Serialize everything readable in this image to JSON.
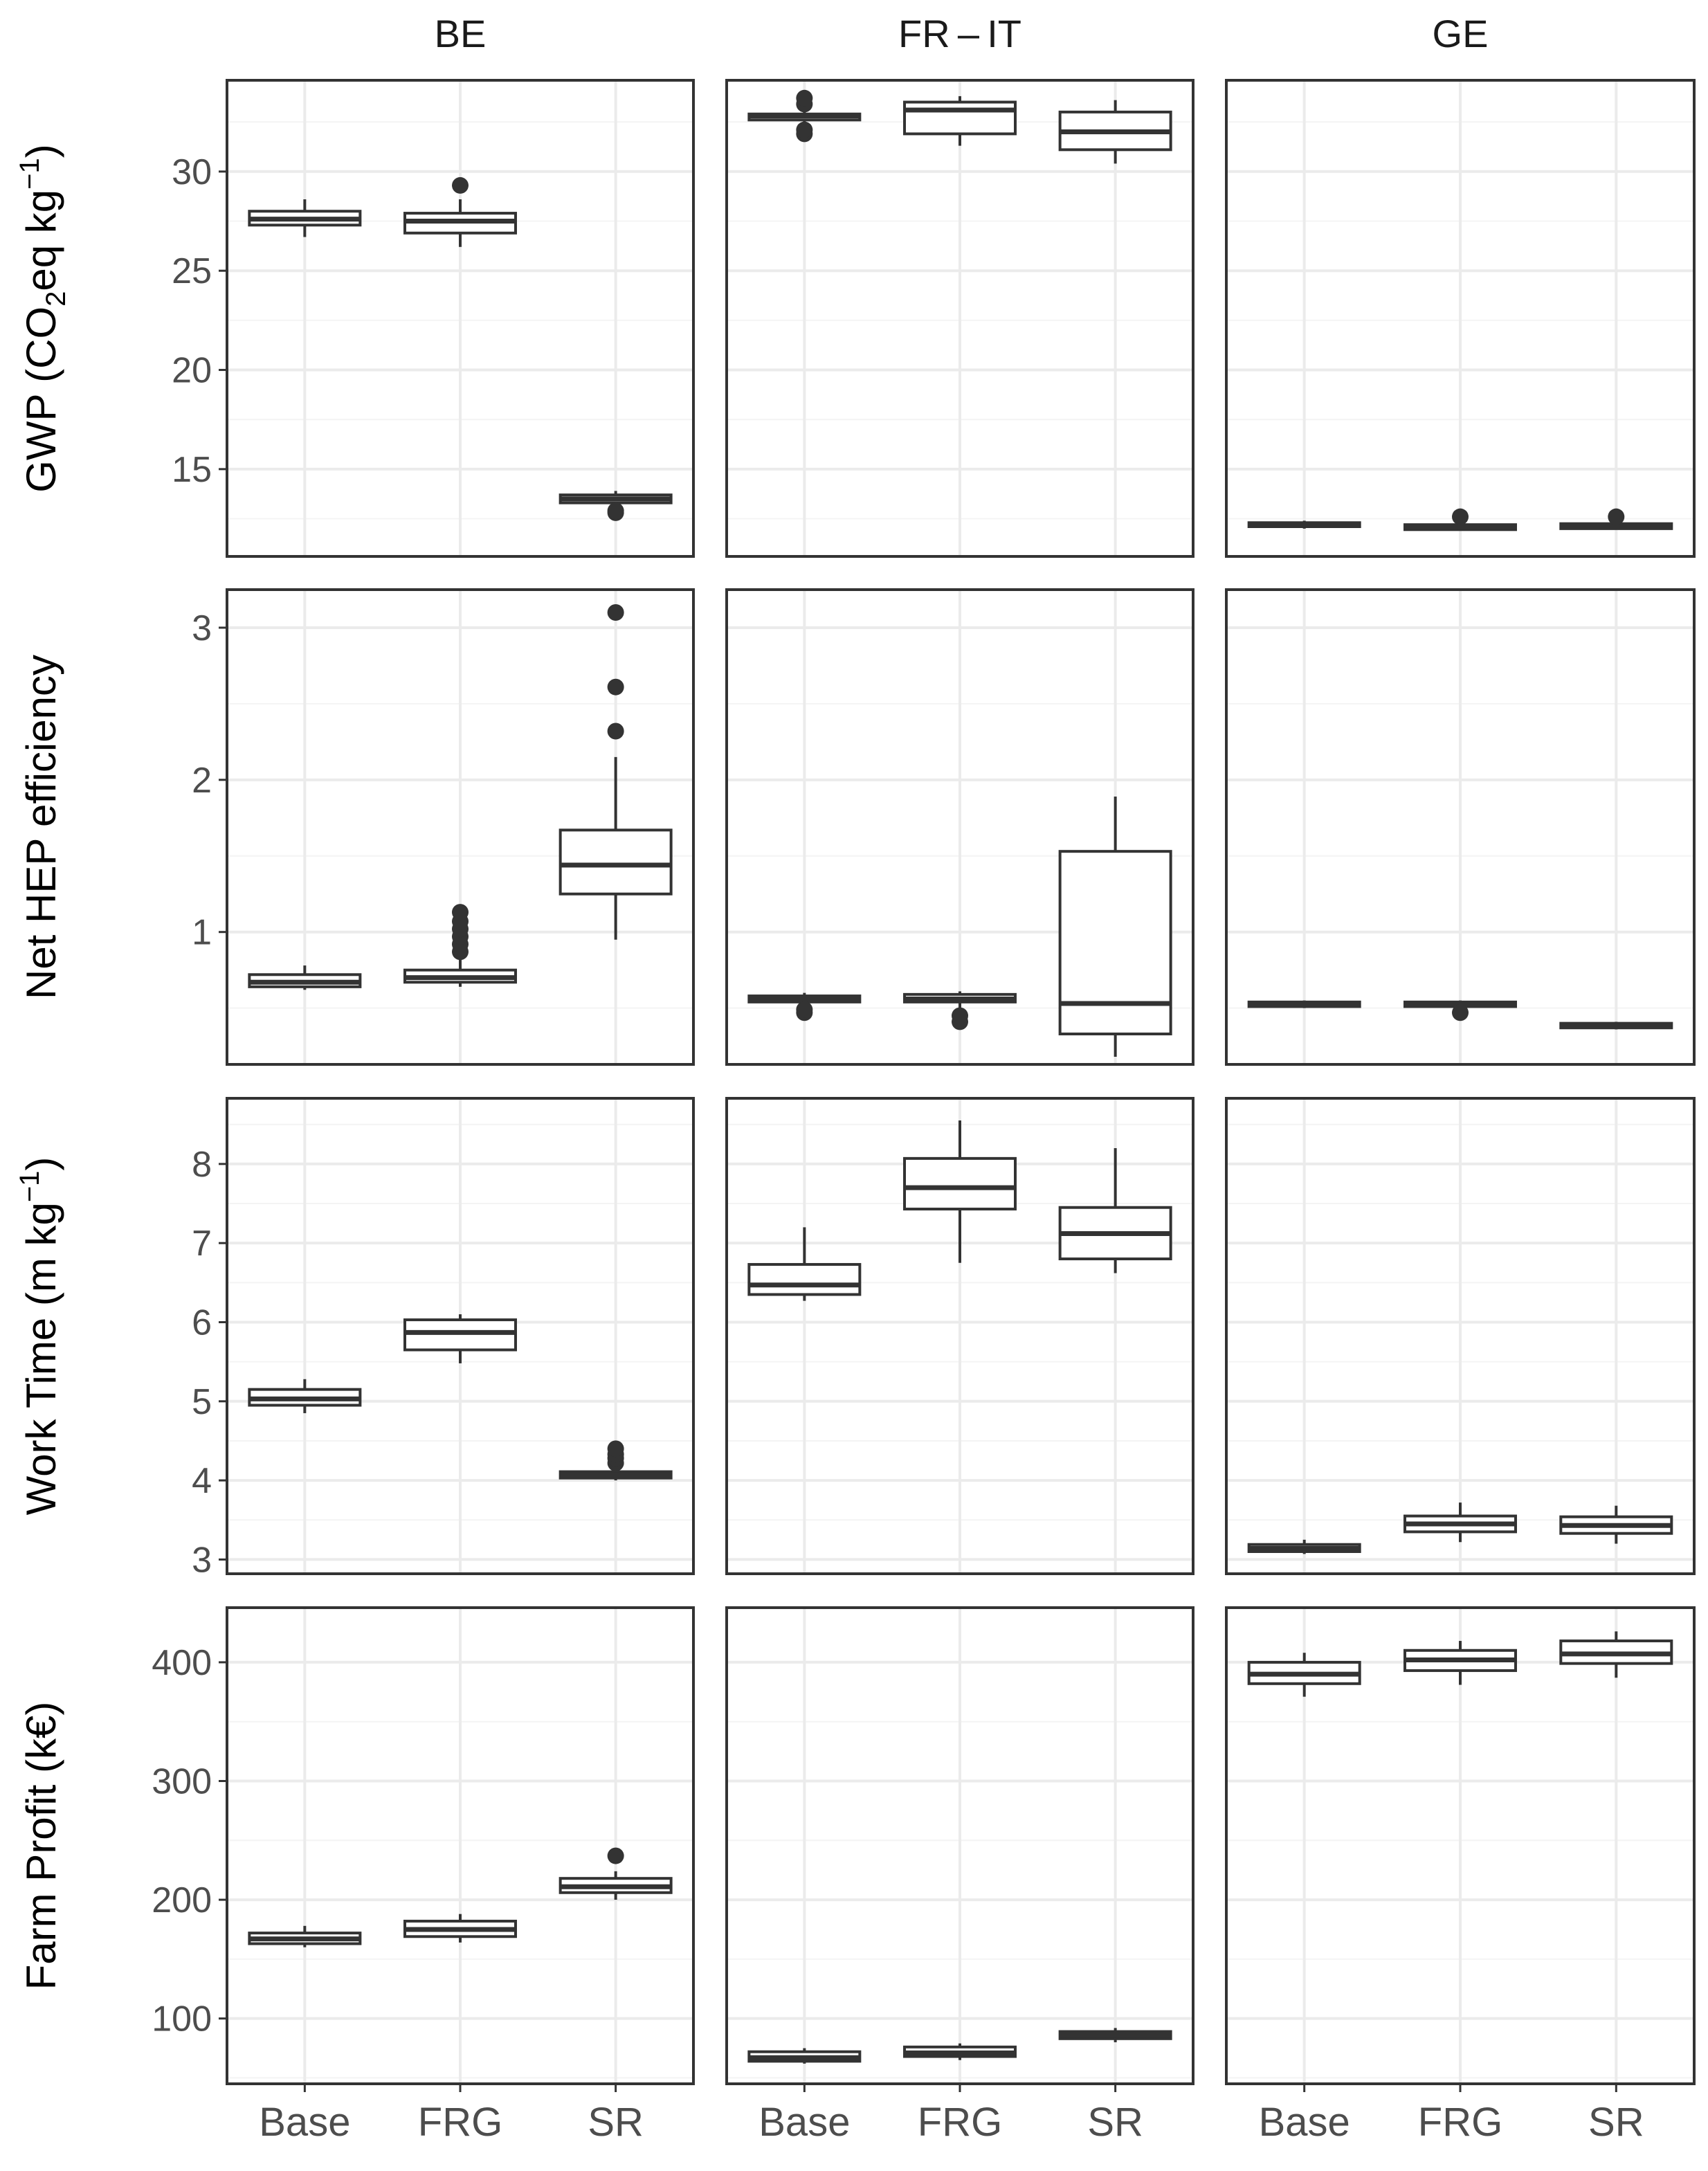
{
  "chart_data": {
    "type": "boxplot",
    "facet_columns": [
      "BE",
      "FR – IT",
      "GE"
    ],
    "categories": [
      "Base",
      "FRG",
      "SR"
    ],
    "panels": [
      {
        "row_key": "gwp",
        "ylabel": {
          "pre": "GWP (CO",
          "sub": "2",
          "mid": "eq kg",
          "sup": "−1",
          "post": ")"
        },
        "ylim": [
          10.6,
          34.6
        ],
        "yticks": [
          15,
          20,
          25,
          30
        ],
        "ytick_labels": [
          "15",
          "20",
          "25",
          "30"
        ],
        "minor_gridlines": [
          12.5,
          17.5,
          22.5,
          27.5,
          32.5
        ],
        "boxes": {
          "BE": [
            {
              "lo": 26.7,
              "q1": 27.3,
              "med": 27.6,
              "q3": 28.0,
              "hi": 28.6,
              "out": []
            },
            {
              "lo": 26.2,
              "q1": 26.9,
              "med": 27.5,
              "q3": 27.9,
              "hi": 28.6,
              "out": [
                29.3
              ]
            },
            {
              "lo": 13.1,
              "q1": 13.3,
              "med": 13.5,
              "q3": 13.7,
              "hi": 13.9,
              "out": [
                12.8,
                12.9
              ]
            }
          ],
          "FR – IT": [
            {
              "lo": 32.4,
              "q1": 32.6,
              "med": 32.8,
              "q3": 32.9,
              "hi": 33.1,
              "out": [
                31.9,
                32.1,
                33.4,
                33.7
              ]
            },
            {
              "lo": 31.3,
              "q1": 31.9,
              "med": 33.1,
              "q3": 33.5,
              "hi": 33.8,
              "out": []
            },
            {
              "lo": 30.4,
              "q1": 31.1,
              "med": 32.0,
              "q3": 33.0,
              "hi": 33.6,
              "out": []
            }
          ],
          "GE": [
            {
              "lo": 12.0,
              "q1": 12.1,
              "med": 12.2,
              "q3": 12.3,
              "hi": 12.4,
              "out": []
            },
            {
              "lo": 11.9,
              "q1": 11.95,
              "med": 12.05,
              "q3": 12.2,
              "hi": 12.3,
              "out": [
                12.6
              ]
            },
            {
              "lo": 11.95,
              "q1": 12.0,
              "med": 12.1,
              "q3": 12.25,
              "hi": 12.35,
              "out": [
                12.6
              ]
            }
          ]
        }
      },
      {
        "row_key": "hep",
        "ylabel": {
          "pre": "Net HEP efficiency",
          "sub": "",
          "mid": "",
          "sup": "",
          "post": ""
        },
        "ylim": [
          0.13,
          3.25
        ],
        "yticks": [
          1,
          2,
          3
        ],
        "ytick_labels": [
          "1",
          "2",
          "3"
        ],
        "minor_gridlines": [
          0.5,
          1.5,
          2.5
        ],
        "boxes": {
          "BE": [
            {
              "lo": 0.62,
              "q1": 0.64,
              "med": 0.67,
              "q3": 0.72,
              "hi": 0.78,
              "out": []
            },
            {
              "lo": 0.64,
              "q1": 0.67,
              "med": 0.7,
              "q3": 0.75,
              "hi": 0.82,
              "out": [
                0.87,
                0.92,
                0.97,
                1.02,
                1.07,
                1.13
              ]
            },
            {
              "lo": 0.95,
              "q1": 1.25,
              "med": 1.44,
              "q3": 1.67,
              "hi": 2.15,
              "out": [
                2.32,
                2.61,
                3.1
              ]
            }
          ],
          "FR – IT": [
            {
              "lo": 0.53,
              "q1": 0.54,
              "med": 0.56,
              "q3": 0.58,
              "hi": 0.6,
              "out": [
                0.47,
                0.49
              ]
            },
            {
              "lo": 0.5,
              "q1": 0.54,
              "med": 0.56,
              "q3": 0.59,
              "hi": 0.61,
              "out": [
                0.41,
                0.45
              ]
            },
            {
              "lo": 0.18,
              "q1": 0.33,
              "med": 0.53,
              "q3": 1.53,
              "hi": 1.89,
              "out": []
            }
          ],
          "GE": [
            {
              "lo": 0.5,
              "q1": 0.51,
              "med": 0.52,
              "q3": 0.54,
              "hi": 0.55,
              "out": []
            },
            {
              "lo": 0.5,
              "q1": 0.51,
              "med": 0.52,
              "q3": 0.54,
              "hi": 0.55,
              "out": [
                0.47
              ]
            },
            {
              "lo": 0.36,
              "q1": 0.37,
              "med": 0.38,
              "q3": 0.4,
              "hi": 0.41,
              "out": []
            }
          ]
        }
      },
      {
        "row_key": "work",
        "ylabel": {
          "pre": "Work Time (m kg",
          "sub": "",
          "mid": "",
          "sup": "−1",
          "post": ")"
        },
        "ylim": [
          2.82,
          8.83
        ],
        "yticks": [
          3,
          4,
          5,
          6,
          7,
          8
        ],
        "ytick_labels": [
          "3",
          "4",
          "5",
          "6",
          "7",
          "8"
        ],
        "minor_gridlines": [
          3.5,
          4.5,
          5.5,
          6.5,
          7.5,
          8.5
        ],
        "boxes": {
          "BE": [
            {
              "lo": 4.85,
              "q1": 4.95,
              "med": 5.03,
              "q3": 5.15,
              "hi": 5.28,
              "out": []
            },
            {
              "lo": 5.48,
              "q1": 5.65,
              "med": 5.87,
              "q3": 6.03,
              "hi": 6.1,
              "out": []
            },
            {
              "lo": 4.0,
              "q1": 4.03,
              "med": 4.07,
              "q3": 4.11,
              "hi": 4.18,
              "out": [
                4.22,
                4.28,
                4.33,
                4.4
              ]
            }
          ],
          "FR – IT": [
            {
              "lo": 6.27,
              "q1": 6.35,
              "med": 6.47,
              "q3": 6.73,
              "hi": 7.2,
              "out": []
            },
            {
              "lo": 6.75,
              "q1": 7.43,
              "med": 7.7,
              "q3": 8.07,
              "hi": 8.55,
              "out": []
            },
            {
              "lo": 6.62,
              "q1": 6.8,
              "med": 7.12,
              "q3": 7.45,
              "hi": 8.2,
              "out": []
            }
          ],
          "GE": [
            {
              "lo": 3.07,
              "q1": 3.1,
              "med": 3.14,
              "q3": 3.19,
              "hi": 3.25,
              "out": []
            },
            {
              "lo": 3.22,
              "q1": 3.35,
              "med": 3.45,
              "q3": 3.55,
              "hi": 3.72,
              "out": []
            },
            {
              "lo": 3.2,
              "q1": 3.33,
              "med": 3.43,
              "q3": 3.54,
              "hi": 3.68,
              "out": []
            }
          ]
        }
      },
      {
        "row_key": "profit",
        "ylabel": {
          "pre": "Farm Profit (k€)",
          "sub": "",
          "mid": "",
          "sup": "",
          "post": ""
        },
        "ylim": [
          45,
          446
        ],
        "yticks": [
          100,
          200,
          300,
          400
        ],
        "ytick_labels": [
          "100",
          "200",
          "300",
          "400"
        ],
        "minor_gridlines": [
          50,
          150,
          250,
          350
        ],
        "boxes": {
          "BE": [
            {
              "lo": 160,
              "q1": 163,
              "med": 167,
              "q3": 172,
              "hi": 178,
              "out": []
            },
            {
              "lo": 164,
              "q1": 169,
              "med": 175,
              "q3": 182,
              "hi": 188,
              "out": []
            },
            {
              "lo": 200,
              "q1": 206,
              "med": 211,
              "q3": 218,
              "hi": 224,
              "out": [
                237
              ]
            }
          ],
          "FR – IT": [
            {
              "lo": 62,
              "q1": 64,
              "med": 67,
              "q3": 72,
              "hi": 75,
              "out": []
            },
            {
              "lo": 65,
              "q1": 68,
              "med": 71,
              "q3": 76,
              "hi": 79,
              "out": []
            },
            {
              "lo": 80,
              "q1": 83,
              "med": 86,
              "q3": 89,
              "hi": 92,
              "out": []
            }
          ],
          "GE": [
            {
              "lo": 371,
              "q1": 382,
              "med": 390,
              "q3": 400,
              "hi": 408,
              "out": []
            },
            {
              "lo": 381,
              "q1": 393,
              "med": 402,
              "q3": 410,
              "hi": 418,
              "out": []
            },
            {
              "lo": 387,
              "q1": 399,
              "med": 407,
              "q3": 418,
              "hi": 426,
              "out": []
            }
          ]
        }
      }
    ],
    "colors": {
      "box_line": "#333333",
      "box_fill": "#ffffff",
      "panel_border": "#333333",
      "grid_major": "#ebebeb",
      "grid_minor": "#f4f4f4",
      "tick_label": "#4d4d4d"
    }
  }
}
